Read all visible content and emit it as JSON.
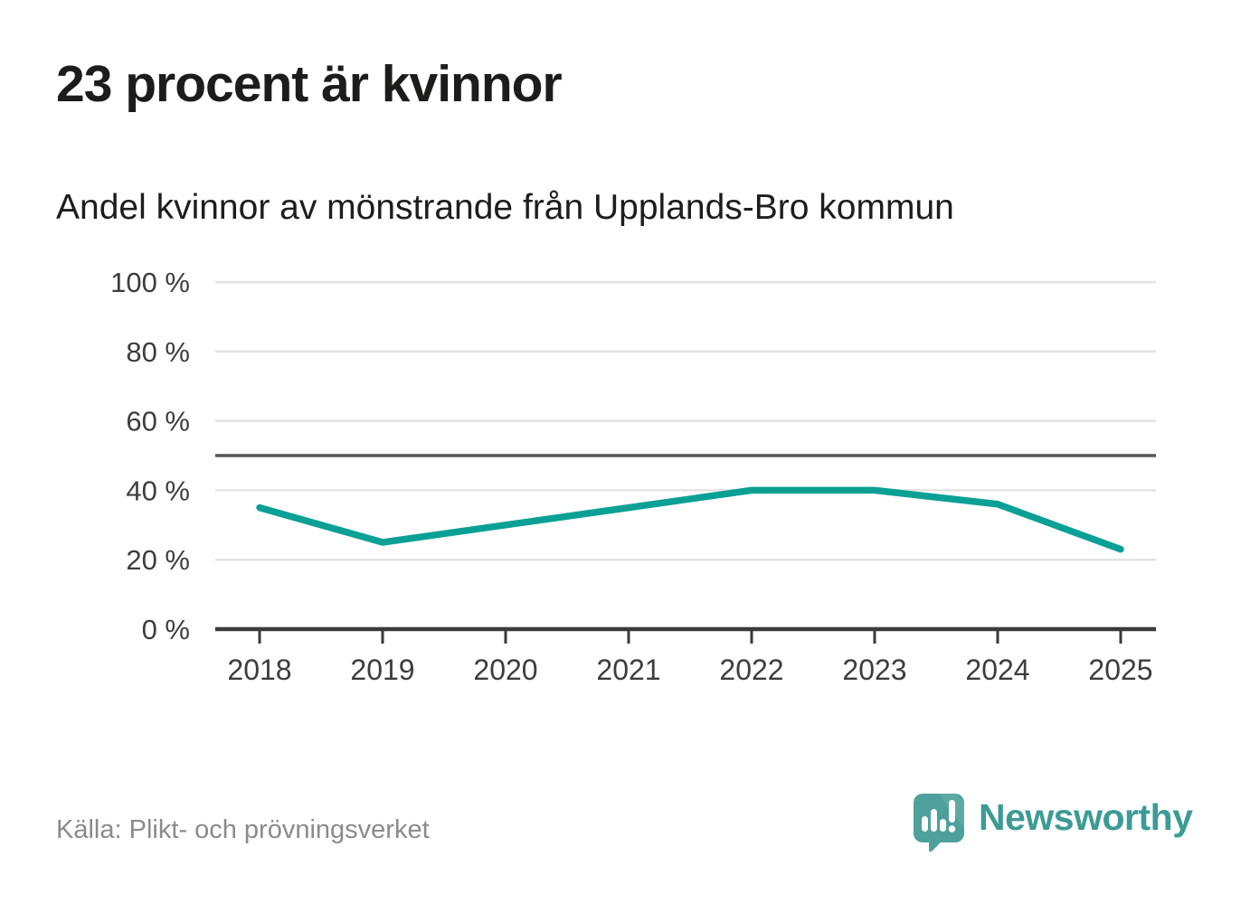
{
  "header": {
    "title": "23 procent är kvinnor",
    "subtitle": "Andel kvinnor av mönstrande från Upplands-Bro kommun"
  },
  "chart_data": {
    "type": "line",
    "title": "23 procent är kvinnor",
    "subtitle": "Andel kvinnor av mönstrande från Upplands-Bro kommun",
    "categories": [
      "2018",
      "2019",
      "2020",
      "2021",
      "2022",
      "2023",
      "2024",
      "2025"
    ],
    "series": [
      {
        "name": "Andel kvinnor av mönstrande",
        "values": [
          35,
          25,
          30,
          35,
          40,
          40,
          36,
          23
        ]
      }
    ],
    "unit": "%",
    "ylim": [
      0,
      100
    ],
    "yticks": [
      0,
      20,
      40,
      60,
      80,
      100
    ],
    "ytick_labels": [
      "0 %",
      "20 %",
      "40 %",
      "60 %",
      "80 %",
      "100 %"
    ],
    "reference_line": 50,
    "grid": true,
    "legend": "none"
  },
  "footer": {
    "source": "Källa: Plikt- och prövningsverket",
    "brand": "Newsworthy"
  },
  "colors": {
    "line": "#0aa095",
    "reference_line": "#55565a",
    "gridline": "#e3e3e3",
    "axis": "#3a3a3a",
    "axis_label": "#3d3d3d",
    "brand_teal": "#4da09b",
    "source_gray": "#8b8b8b"
  }
}
